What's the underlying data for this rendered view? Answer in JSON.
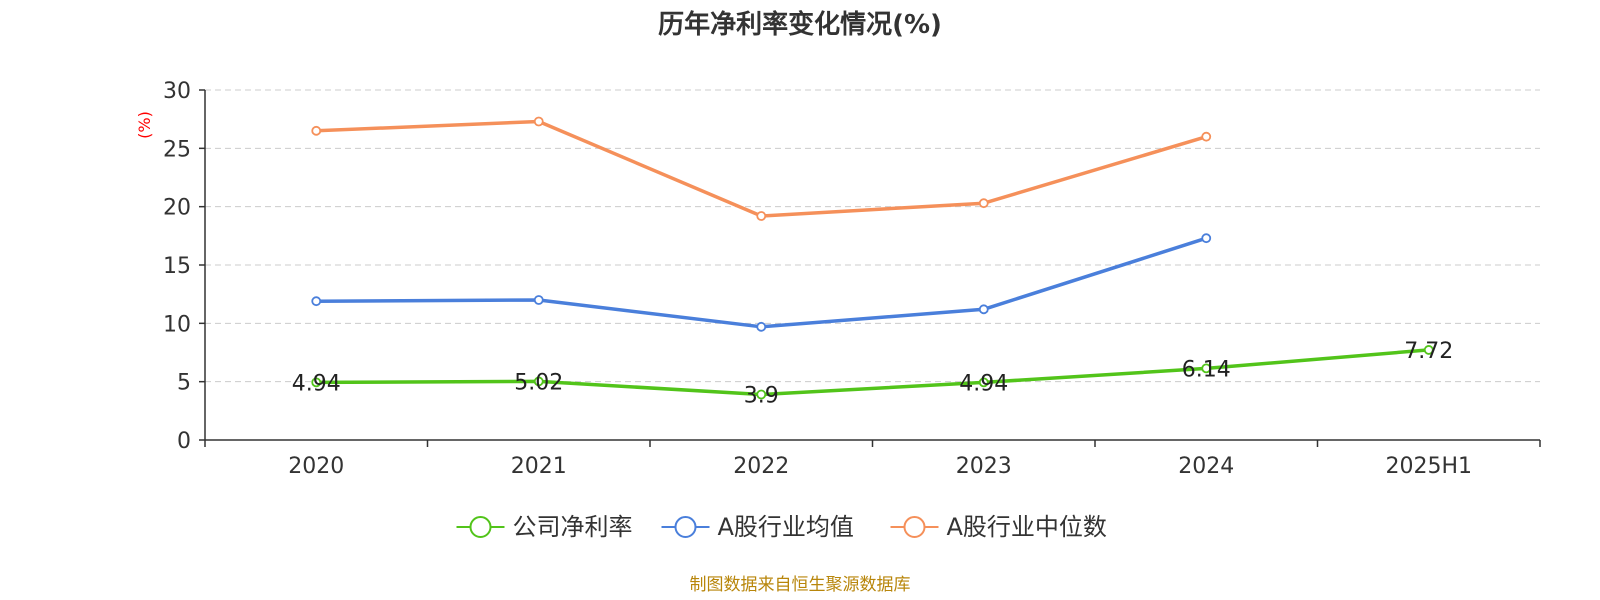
{
  "source_text": "制图数据来自恒生聚源数据库",
  "colors": {
    "source": "#b8860b",
    "axis": "#333333",
    "grid": "#cccccc",
    "unit_label": "#ff0000"
  },
  "chart_data": {
    "type": "line",
    "title": "历年净利率变化情况(%)",
    "ylabel": "(%)",
    "xlabel": "",
    "categories": [
      "2020",
      "2021",
      "2022",
      "2023",
      "2024",
      "2025H1"
    ],
    "ylim": [
      0,
      30
    ],
    "yticks": [
      0,
      5,
      10,
      15,
      20,
      25,
      30
    ],
    "grid": "horizontal dashed",
    "legend_position": "bottom-center",
    "series": [
      {
        "name": "公司净利率",
        "color": "#52c41a",
        "show_labels": true,
        "values": [
          4.94,
          5.02,
          3.9,
          4.94,
          6.14,
          7.72
        ]
      },
      {
        "name": "A股行业均值",
        "color": "#4a7fdb",
        "show_labels": false,
        "values": [
          11.9,
          12.0,
          9.7,
          11.2,
          17.3,
          null
        ]
      },
      {
        "name": "A股行业中位数",
        "color": "#f5905a",
        "show_labels": false,
        "values": [
          26.5,
          27.3,
          19.2,
          20.3,
          26.0,
          null
        ]
      }
    ]
  }
}
